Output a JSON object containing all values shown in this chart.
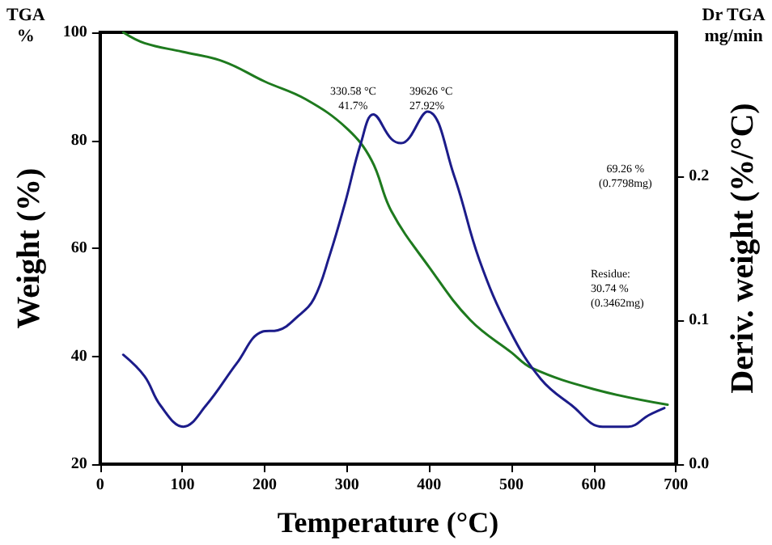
{
  "chart_data": {
    "type": "line",
    "xlabel": "Temperature (°C)",
    "ylabel": "Weight (%)",
    "y2label": "Deriv. weight (%/°C)",
    "xlim": [
      0,
      700
    ],
    "xticks": [
      0,
      100,
      200,
      300,
      400,
      500,
      600,
      700
    ],
    "ylim": [
      20,
      100
    ],
    "yticks": [
      20,
      40,
      60,
      80,
      100
    ],
    "y2lim": [
      0,
      0.3
    ],
    "y2ticks": [
      {
        "value": 0,
        "label": "0.0"
      },
      0.1,
      0.2
    ],
    "grid": false,
    "marker": "none",
    "line_style": "solid",
    "annotations": [
      "TGA\n%",
      "Dr TGA\nmg/min",
      "330.58 °C\n41.7%",
      "39626 °C\n27.92%",
      "69.26 %\n(0.7798mg)",
      "Residue:\n30.74 %\n(0.3462mg)"
    ],
    "series": [
      {
        "color": "#1e7a1e",
        "x": [
          28,
          54,
          100,
          150,
          200,
          250,
          300,
          330,
          354,
          400,
          450,
          500,
          525,
          600,
          690
        ],
        "values": [
          100,
          98.0,
          96.4,
          94.6,
          90.9,
          87.6,
          82.2,
          76.3,
          66.9,
          56.5,
          46.7,
          40.7,
          37.8,
          33.9,
          31.0
        ]
      },
      {
        "color": "#1c1c8a",
        "axis": "y2",
        "x": [
          28,
          54,
          73,
          101,
          129,
          166,
          197,
          216,
          241,
          260,
          279,
          298,
          317,
          332,
          354,
          366,
          398,
          430,
          461,
          498,
          536,
          573,
          611,
          642,
          667,
          686
        ],
        "values": [
          0.076,
          0.061,
          0.041,
          0.026,
          0.041,
          0.07,
          0.092,
          0.093,
          0.103,
          0.115,
          0.145,
          0.182,
          0.223,
          0.243,
          0.226,
          0.223,
          0.245,
          0.201,
          0.142,
          0.093,
          0.059,
          0.041,
          0.026,
          0.026,
          0.034,
          0.039
        ]
      }
    ]
  }
}
